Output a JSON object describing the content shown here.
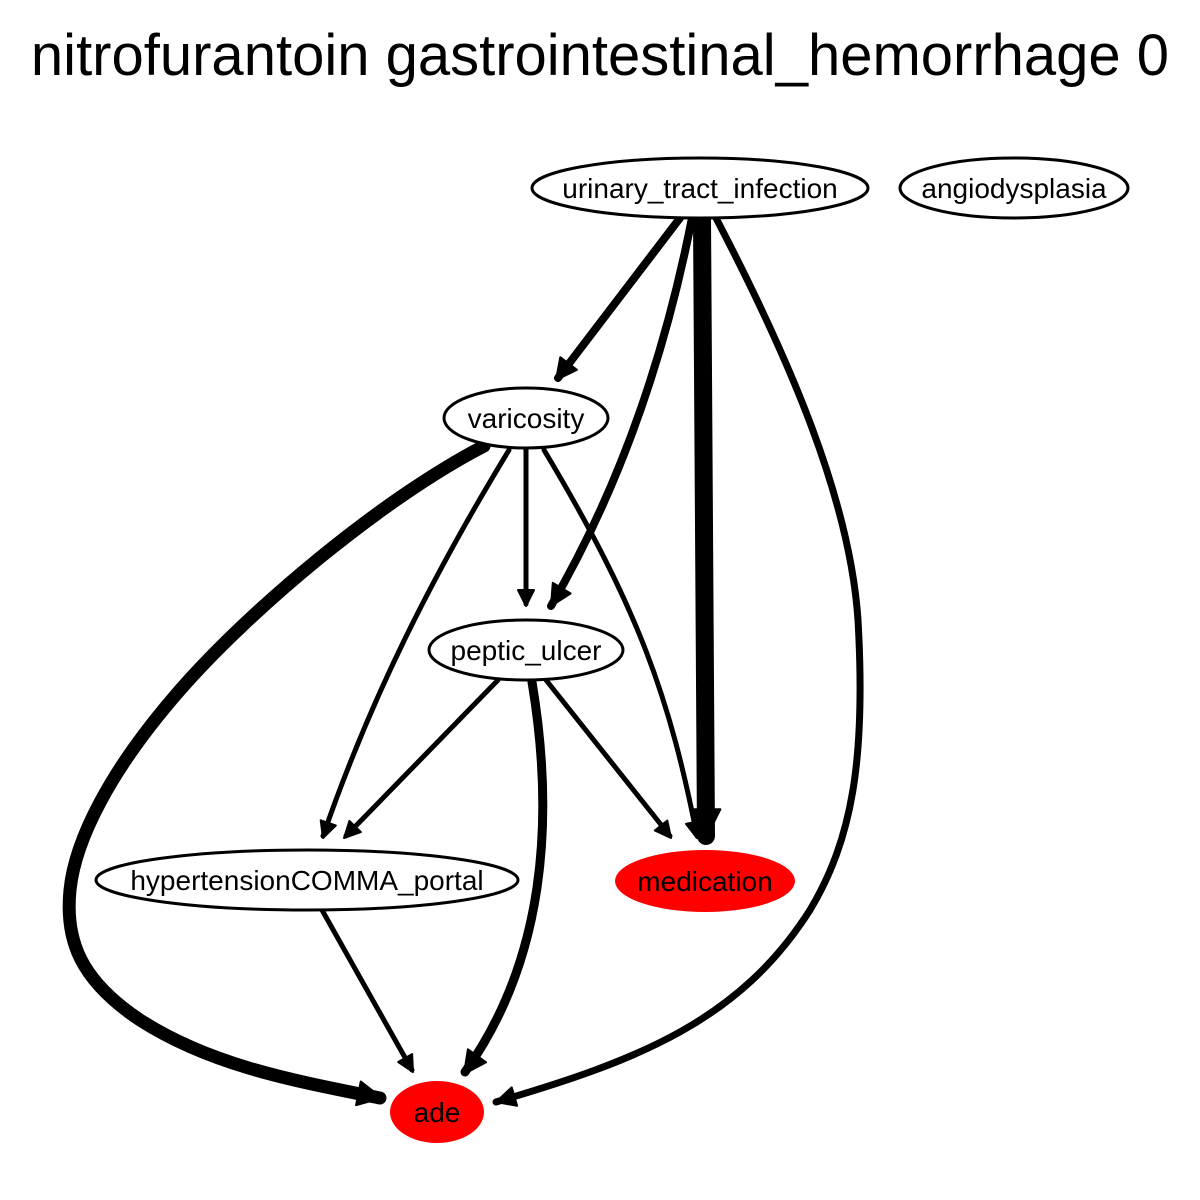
{
  "title": "nitrofurantoin gastrointestinal_hemorrhage 0",
  "highlight_color": "#ff0000",
  "nodes": [
    {
      "id": "urinary_tract_infection",
      "label": "urinary_tract_infection",
      "filled": false
    },
    {
      "id": "angiodysplasia",
      "label": "angiodysplasia",
      "filled": false
    },
    {
      "id": "varicosity",
      "label": "varicosity",
      "filled": false
    },
    {
      "id": "peptic_ulcer",
      "label": "peptic_ulcer",
      "filled": false
    },
    {
      "id": "hypertension_portal",
      "label": "hypertensionCOMMA_portal",
      "filled": false
    },
    {
      "id": "medication",
      "label": "medication",
      "filled": true
    },
    {
      "id": "ade",
      "label": "ade",
      "filled": true
    }
  ],
  "edges": [
    {
      "from": "urinary_tract_infection",
      "to": "varicosity"
    },
    {
      "from": "urinary_tract_infection",
      "to": "peptic_ulcer"
    },
    {
      "from": "urinary_tract_infection",
      "to": "medication"
    },
    {
      "from": "urinary_tract_infection",
      "to": "ade"
    },
    {
      "from": "varicosity",
      "to": "peptic_ulcer"
    },
    {
      "from": "varicosity",
      "to": "hypertension_portal"
    },
    {
      "from": "varicosity",
      "to": "medication"
    },
    {
      "from": "varicosity",
      "to": "ade"
    },
    {
      "from": "peptic_ulcer",
      "to": "hypertension_portal"
    },
    {
      "from": "peptic_ulcer",
      "to": "medication"
    },
    {
      "from": "peptic_ulcer",
      "to": "ade"
    },
    {
      "from": "hypertension_portal",
      "to": "ade"
    }
  ]
}
